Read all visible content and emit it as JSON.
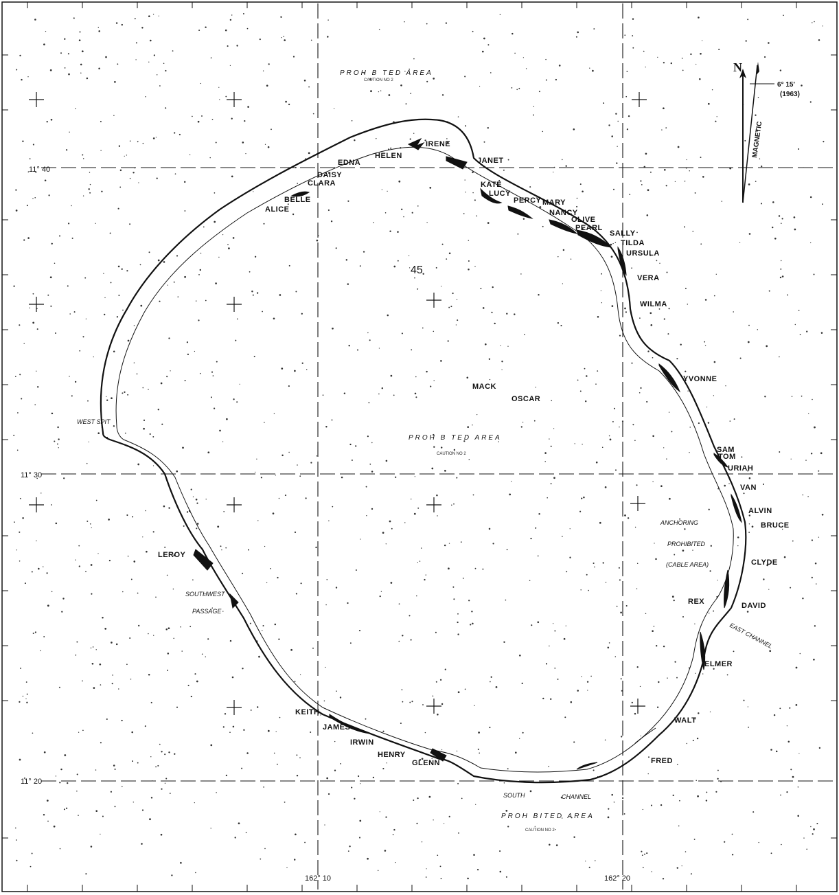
{
  "islands": [
    {
      "name": "IRENE"
    },
    {
      "name": "HELEN"
    },
    {
      "name": "JANET"
    },
    {
      "name": "EDNA"
    },
    {
      "name": "DAISY"
    },
    {
      "name": "CLARA"
    },
    {
      "name": "KATE"
    },
    {
      "name": "LUCY"
    },
    {
      "name": "BELLE"
    },
    {
      "name": "ALICE"
    },
    {
      "name": "PERCY"
    },
    {
      "name": "MARY"
    },
    {
      "name": "NANCY"
    },
    {
      "name": "OLIVE"
    },
    {
      "name": "PEARL"
    },
    {
      "name": "SALLY"
    },
    {
      "name": "TILDA"
    },
    {
      "name": "URSULA"
    },
    {
      "name": "VERA"
    },
    {
      "name": "WILMA"
    },
    {
      "name": "YVONNE"
    },
    {
      "name": "SAM"
    },
    {
      "name": "TOM"
    },
    {
      "name": "URIAH"
    },
    {
      "name": "VAN"
    },
    {
      "name": "ALVIN"
    },
    {
      "name": "BRUCE"
    },
    {
      "name": "CLYDE"
    },
    {
      "name": "DAVID"
    },
    {
      "name": "REX"
    },
    {
      "name": "ELMER"
    },
    {
      "name": "WALT"
    },
    {
      "name": "FRED"
    },
    {
      "name": "GLENN"
    },
    {
      "name": "HENRY"
    },
    {
      "name": "IRWIN"
    },
    {
      "name": "JAMES"
    },
    {
      "name": "KEITH"
    },
    {
      "name": "LEROY"
    },
    {
      "name": "MACK"
    },
    {
      "name": "OSCAR"
    }
  ],
  "passages": {
    "west_spit": "WEST SPIT",
    "southwest": "SOUTHWEST",
    "passage": "PASSAGE",
    "east_channel": "EAST CHANNEL",
    "south": "SOUTH",
    "channel": "CHANNEL"
  },
  "areas": {
    "prohibited_top": "PROH B TED AREA",
    "caution_top": "CAUTION NO 2",
    "prohibited_center": "PROH B TED AREA",
    "caution_center": "CAUTION NO 2",
    "prohibited_bottom": "PROH BITED AREA",
    "caution_bottom": "CAUTION NO 2",
    "anchoring": "ANCHORING",
    "prohibited_anchor": "PROHIBITED",
    "cable_area": "(CABLE AREA)"
  },
  "coordinates": {
    "lat_1140": "11° 40",
    "lat_1130": "11° 30",
    "lat_1120": "11° 20",
    "lon_16210": "162° 10",
    "lon_16220": "162° 20"
  },
  "compass": {
    "north": "N",
    "variation": "6° 15'",
    "year": "(1963)",
    "magnetic": "MAGNETIC"
  },
  "depth_marker": "45",
  "colors": {
    "ink": "#111111",
    "paper": "#ffffff"
  }
}
